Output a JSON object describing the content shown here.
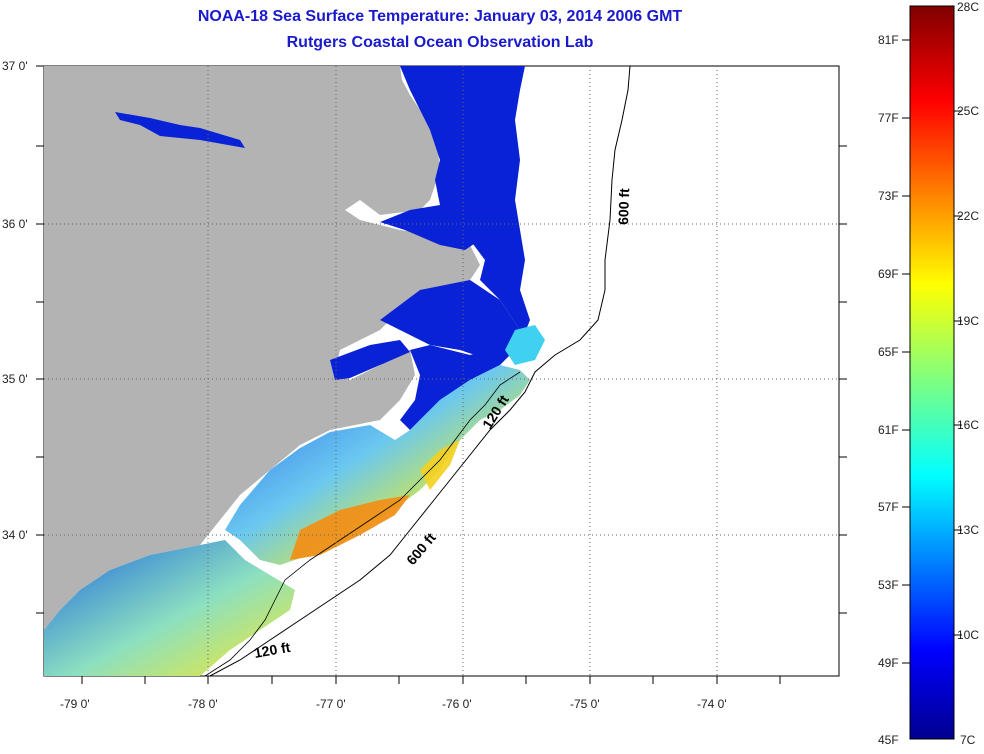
{
  "header": {
    "title": "NOAA-18 Sea Surface Temperature:  January 03, 2014 2006 GMT",
    "subtitle": "Rutgers Coastal Ocean Observation Lab"
  },
  "map": {
    "lon_labels": [
      "-79 0'",
      "-78 0'",
      "-77 0'",
      "-76 0'",
      "-75 0'",
      "-74 0'"
    ],
    "lat_labels": [
      "37 0'",
      "36 0'",
      "35 0'",
      "34 0'"
    ],
    "contour_labels": [
      "600 ft",
      "120 ft",
      "600 ft",
      "120 ft"
    ],
    "colors": {
      "land": "#b3b3b3",
      "cold_water": "#0a22d6",
      "warm_water": "#f09018"
    }
  },
  "colorbar": {
    "fahrenheit_labels": [
      "81F",
      "77F",
      "73F",
      "69F",
      "65F",
      "61F",
      "57F",
      "53F",
      "49F",
      "45F"
    ],
    "celsius_labels": [
      "28C",
      "25C",
      "22C",
      "19C",
      "16C",
      "13C",
      "10C",
      "7C"
    ],
    "range_c": [
      7,
      28
    ],
    "colormap": "jet"
  }
}
